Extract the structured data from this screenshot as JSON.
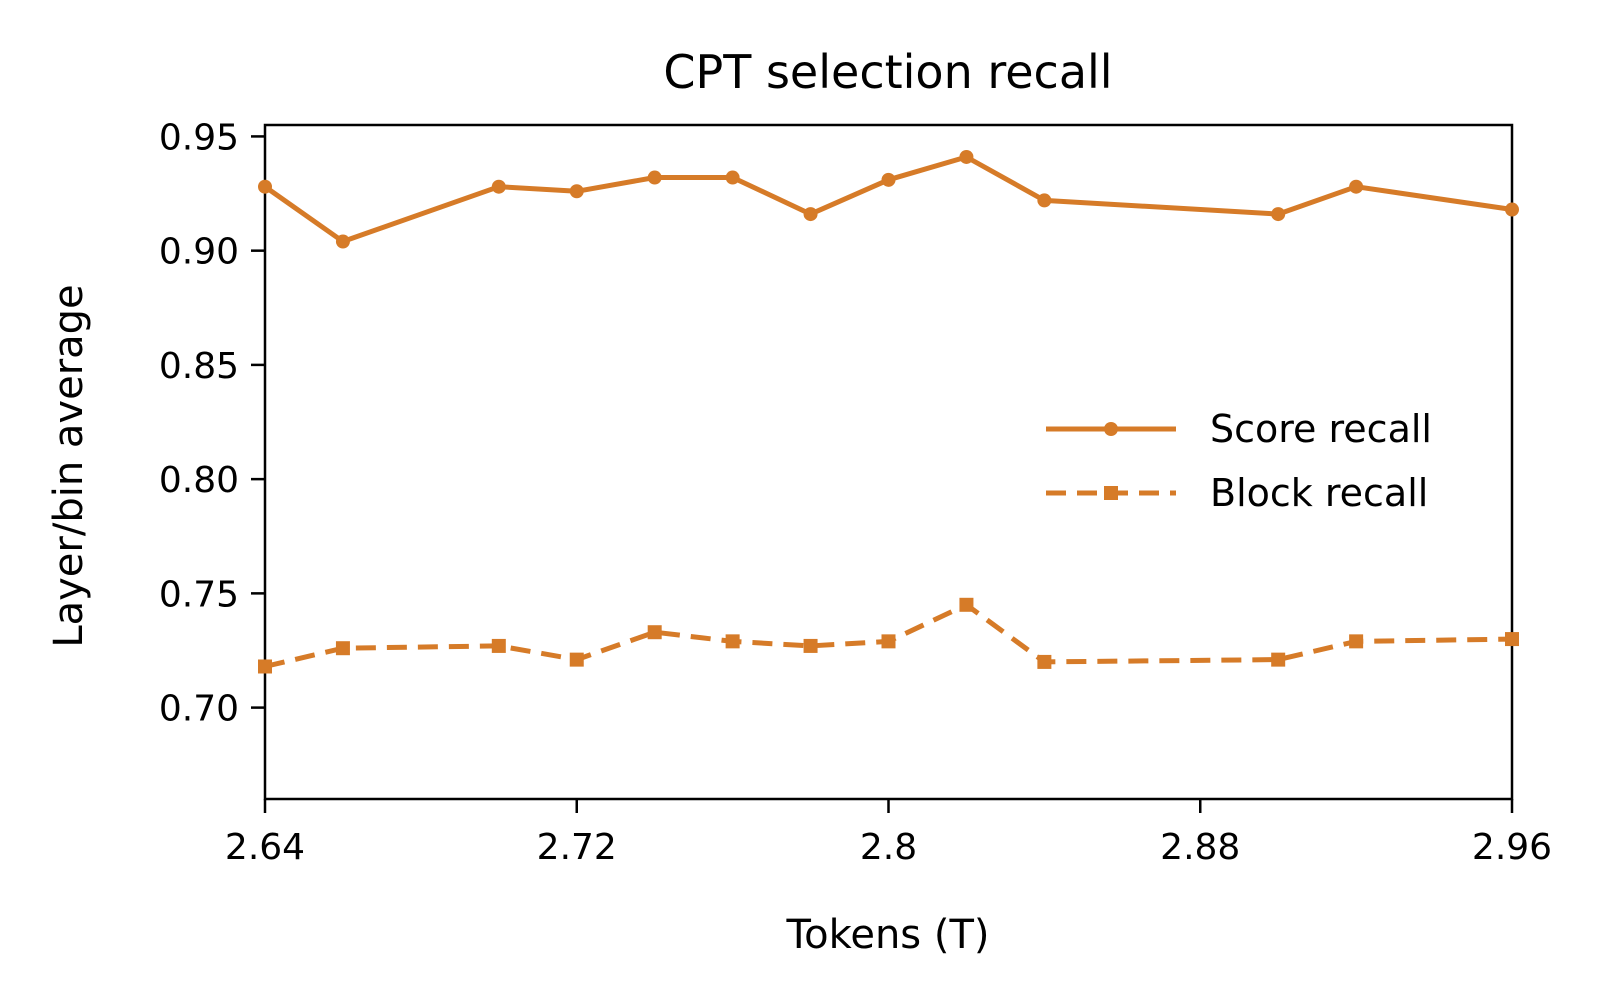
{
  "chart_data": {
    "type": "line",
    "title": "CPT selection recall",
    "xlabel": "Tokens (T)",
    "ylabel": "Layer/bin average",
    "xlim": [
      2.64,
      2.96
    ],
    "ylim": [
      0.66,
      0.955
    ],
    "xticks": [
      2.64,
      2.72,
      2.8,
      2.88,
      2.96
    ],
    "xtick_labels": [
      "2.64",
      "2.72",
      "2.8",
      "2.88",
      "2.96"
    ],
    "yticks": [
      0.7,
      0.75,
      0.8,
      0.85,
      0.9,
      0.95
    ],
    "ytick_labels": [
      "0.70",
      "0.75",
      "0.80",
      "0.85",
      "0.90",
      "0.95"
    ],
    "grid": false,
    "legend_position": "center-right",
    "color": "#D67B28",
    "x": [
      2.64,
      2.66,
      2.7,
      2.72,
      2.74,
      2.76,
      2.78,
      2.8,
      2.82,
      2.84,
      2.9,
      2.92,
      2.96
    ],
    "series": [
      {
        "name": "Score recall",
        "style": "solid",
        "marker": "circle",
        "values": [
          0.928,
          0.904,
          0.928,
          0.926,
          0.932,
          0.932,
          0.916,
          0.931,
          0.941,
          0.922,
          0.916,
          0.928,
          0.918
        ]
      },
      {
        "name": "Block recall",
        "style": "dashed",
        "marker": "square",
        "values": [
          0.718,
          0.726,
          0.727,
          0.721,
          0.733,
          0.729,
          0.727,
          0.729,
          0.745,
          0.72,
          0.721,
          0.729,
          0.73
        ]
      }
    ]
  }
}
